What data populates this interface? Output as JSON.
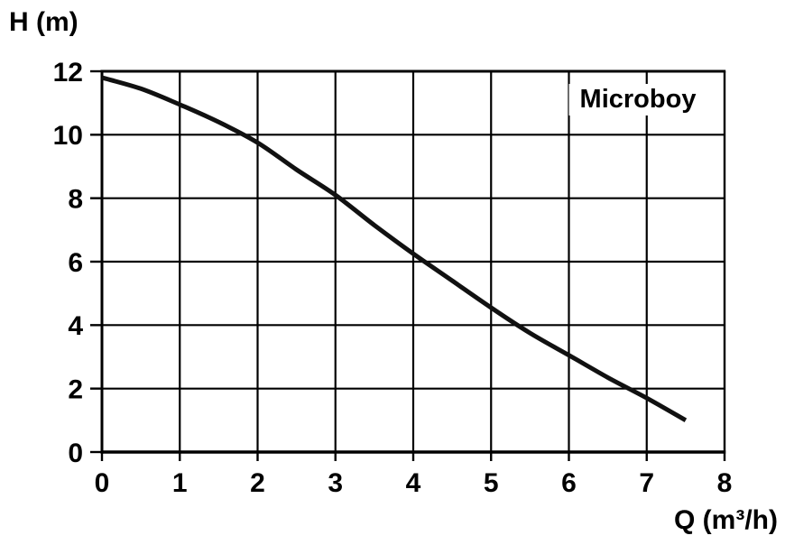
{
  "colors": {
    "foreground": "#000000",
    "background": "#ffffff",
    "curve": "#111111"
  },
  "chart_data": {
    "type": "line",
    "title": "Microboy",
    "grid": true,
    "legend_position": "none",
    "x_axis": {
      "label": "Q (m³/h)",
      "min": 0,
      "max": 8,
      "ticks": [
        0,
        1,
        2,
        3,
        4,
        5,
        6,
        7,
        8
      ]
    },
    "y_axis": {
      "label": "H (m)",
      "min": 0,
      "max": 12,
      "ticks": [
        0,
        2,
        4,
        6,
        8,
        10,
        12
      ]
    },
    "series": [
      {
        "name": "Microboy",
        "points": [
          [
            0.0,
            11.8
          ],
          [
            0.5,
            11.45
          ],
          [
            1.0,
            10.95
          ],
          [
            1.5,
            10.4
          ],
          [
            2.0,
            9.75
          ],
          [
            2.5,
            8.9
          ],
          [
            3.0,
            8.1
          ],
          [
            3.5,
            7.15
          ],
          [
            4.0,
            6.25
          ],
          [
            4.5,
            5.4
          ],
          [
            5.0,
            4.55
          ],
          [
            5.5,
            3.75
          ],
          [
            6.0,
            3.05
          ],
          [
            6.5,
            2.35
          ],
          [
            7.0,
            1.7
          ],
          [
            7.5,
            1.0
          ]
        ]
      }
    ]
  }
}
